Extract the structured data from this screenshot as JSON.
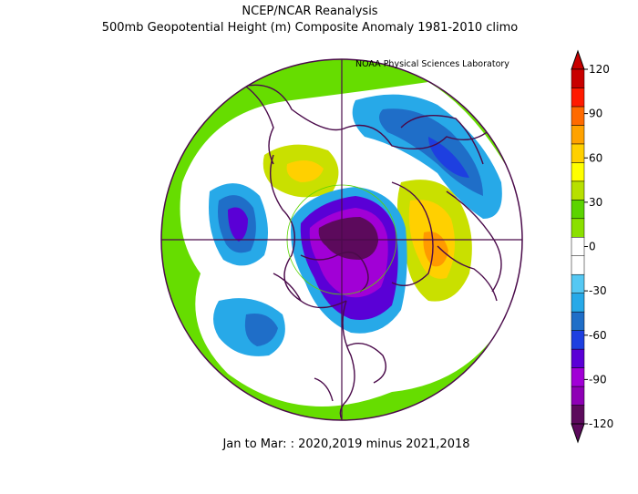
{
  "header": {
    "title": "NCEP/NCAR Reanalysis",
    "subtitle": "500mb Geopotential Height (m) Composite Anomaly 1981-2010 climo",
    "credit": "NOAA Physical Sciences Laboratory"
  },
  "footer": {
    "caption": "Jan to Mar: : 2020,2019 minus 2021,2018"
  },
  "colorbar": {
    "levels": [
      {
        "label": "120",
        "value": 120
      },
      {
        "label": "90",
        "value": 90
      },
      {
        "label": "60",
        "value": 60
      },
      {
        "label": "30",
        "value": 30
      },
      {
        "label": "0",
        "value": 0
      },
      {
        "label": "-30",
        "value": -30
      },
      {
        "label": "-60",
        "value": -60
      },
      {
        "label": "-90",
        "value": -90
      },
      {
        "label": "-120",
        "value": -120
      }
    ],
    "colors": [
      "#5c0a5c",
      "#8e00b5",
      "#a100d6",
      "#5a00d6",
      "#1e3fe0",
      "#1f6ec8",
      "#27a9e8",
      "#55c8f3",
      "#ffffff",
      "#ffffff",
      "#8ae000",
      "#5bd400",
      "#b7e000",
      "#ffff00",
      "#ffd000",
      "#ffa200",
      "#ff6a00",
      "#ff1a00",
      "#c80000"
    ]
  },
  "map": {
    "projection": "north-polar-stereographic",
    "background_color": "#66dd00",
    "features": [
      {
        "name": "negative-center-north-america",
        "sign": "negative",
        "peak": -120
      },
      {
        "name": "negative-center-north-pacific",
        "sign": "negative",
        "peak": -75
      },
      {
        "name": "negative-center-siberia",
        "sign": "negative",
        "peak": -60
      },
      {
        "name": "positive-center-north-atlantic-europe",
        "sign": "positive",
        "peak": 90
      },
      {
        "name": "positive-center-east-asia",
        "sign": "positive",
        "peak": 45
      }
    ]
  }
}
